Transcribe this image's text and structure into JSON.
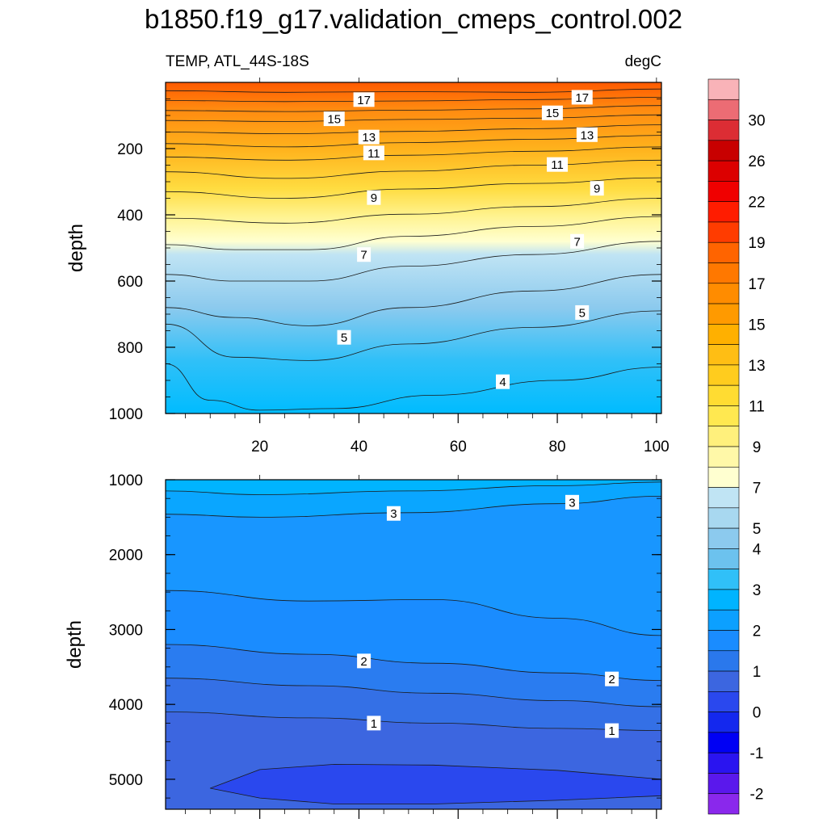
{
  "title": "b1850.f19_g17.validation_cmeps_control.002",
  "left_string": "TEMP, ATL_44S-18S",
  "right_string": "degC",
  "chart_data": [
    {
      "type": "contour",
      "panel": "upper",
      "variable": "TEMP",
      "region": "ATL_44S-18S",
      "units": "degC",
      "ylabel": "depth",
      "xlim": [
        1,
        101
      ],
      "ylim": [
        0,
        1000
      ],
      "y_reversed": true,
      "x_ticks": [
        20,
        40,
        60,
        80,
        100
      ],
      "y_ticks": [
        200,
        400,
        600,
        800,
        1000
      ],
      "contour_labels": [
        {
          "text": "17",
          "x": 41,
          "y": 52
        },
        {
          "text": "17",
          "x": 85,
          "y": 45
        },
        {
          "text": "15",
          "x": 35,
          "y": 110
        },
        {
          "text": "15",
          "x": 79,
          "y": 92
        },
        {
          "text": "13",
          "x": 42,
          "y": 165
        },
        {
          "text": "13",
          "x": 86,
          "y": 158
        },
        {
          "text": "11",
          "x": 43,
          "y": 213
        },
        {
          "text": "11",
          "x": 80,
          "y": 248
        },
        {
          "text": "9",
          "x": 43,
          "y": 348
        },
        {
          "text": "9",
          "x": 88,
          "y": 320
        },
        {
          "text": "7",
          "x": 41,
          "y": 520
        },
        {
          "text": "7",
          "x": 84,
          "y": 480
        },
        {
          "text": "5",
          "x": 37,
          "y": 770
        },
        {
          "text": "5",
          "x": 85,
          "y": 695
        },
        {
          "text": "4",
          "x": 69,
          "y": 904
        }
      ],
      "contours": [
        {
          "level": 17,
          "x": [
            1,
            25,
            50,
            75,
            101
          ],
          "y": [
            25,
            30,
            28,
            30,
            20
          ]
        },
        {
          "level": 16,
          "x": [
            1,
            25,
            50,
            75,
            101
          ],
          "y": [
            55,
            58,
            56,
            52,
            45
          ]
        },
        {
          "level": 15,
          "x": [
            1,
            25,
            50,
            75,
            101
          ],
          "y": [
            85,
            88,
            84,
            80,
            70
          ]
        },
        {
          "level": 14,
          "x": [
            1,
            25,
            50,
            75,
            101
          ],
          "y": [
            115,
            118,
            112,
            108,
            98
          ]
        },
        {
          "level": 13,
          "x": [
            1,
            25,
            50,
            75,
            101
          ],
          "y": [
            150,
            155,
            148,
            140,
            128
          ]
        },
        {
          "level": 12,
          "x": [
            1,
            25,
            50,
            75,
            101
          ],
          "y": [
            185,
            195,
            182,
            172,
            160
          ]
        },
        {
          "level": 11,
          "x": [
            1,
            25,
            50,
            75,
            101
          ],
          "y": [
            225,
            235,
            220,
            208,
            195
          ]
        },
        {
          "level": 10,
          "x": [
            1,
            25,
            50,
            75,
            101
          ],
          "y": [
            270,
            290,
            268,
            250,
            235
          ]
        },
        {
          "level": 9,
          "x": [
            1,
            25,
            50,
            75,
            101
          ],
          "y": [
            330,
            350,
            322,
            305,
            288
          ]
        },
        {
          "level": 8,
          "x": [
            1,
            25,
            50,
            75,
            101
          ],
          "y": [
            410,
            425,
            398,
            375,
            350
          ]
        },
        {
          "level": 7,
          "x": [
            1,
            15,
            30,
            50,
            75,
            101
          ],
          "y": [
            490,
            505,
            505,
            465,
            435,
            405
          ]
        },
        {
          "level": 6,
          "x": [
            1,
            15,
            30,
            50,
            75,
            101
          ],
          "y": [
            580,
            600,
            600,
            555,
            520,
            480
          ]
        },
        {
          "level": 5,
          "x": [
            1,
            15,
            30,
            50,
            75,
            101
          ],
          "y": [
            680,
            710,
            735,
            680,
            630,
            580
          ]
        },
        {
          "level": 4.5,
          "x": [
            1,
            15,
            30,
            50,
            75,
            101
          ],
          "y": [
            730,
            830,
            840,
            790,
            740,
            690
          ]
        },
        {
          "level": 4,
          "x": [
            1,
            10,
            20,
            35,
            55,
            80,
            101
          ],
          "y": [
            850,
            960,
            990,
            985,
            945,
            900,
            860
          ]
        }
      ]
    },
    {
      "type": "contour",
      "panel": "lower",
      "variable": "TEMP",
      "ylabel": "depth",
      "xlim": [
        1,
        101
      ],
      "ylim": [
        1000,
        5400
      ],
      "y_reversed": true,
      "y_ticks": [
        1000,
        2000,
        3000,
        4000,
        5000
      ],
      "contour_labels": [
        {
          "text": "3",
          "x": 47,
          "y": 1450
        },
        {
          "text": "3",
          "x": 83,
          "y": 1300
        },
        {
          "text": "2",
          "x": 41,
          "y": 3420
        },
        {
          "text": "2",
          "x": 91,
          "y": 3660
        },
        {
          "text": "1",
          "x": 43,
          "y": 4250
        },
        {
          "text": "1",
          "x": 91,
          "y": 4350
        }
      ],
      "contours": [
        {
          "level": 3.5,
          "x": [
            1,
            20,
            50,
            80,
            101
          ],
          "y": [
            1150,
            1200,
            1150,
            1080,
            1030
          ]
        },
        {
          "level": 3,
          "x": [
            1,
            20,
            50,
            80,
            101
          ],
          "y": [
            1460,
            1500,
            1440,
            1320,
            1220
          ]
        },
        {
          "level": 2.5,
          "x": [
            1,
            30,
            55,
            80,
            101
          ],
          "y": [
            2480,
            2620,
            2600,
            2850,
            3080
          ]
        },
        {
          "level": 2,
          "x": [
            1,
            30,
            55,
            80,
            101
          ],
          "y": [
            3200,
            3330,
            3450,
            3580,
            3680
          ]
        },
        {
          "level": 1.5,
          "x": [
            1,
            30,
            55,
            80,
            101
          ],
          "y": [
            3650,
            3750,
            3850,
            3950,
            4030
          ]
        },
        {
          "level": 1,
          "x": [
            1,
            30,
            55,
            80,
            101
          ],
          "y": [
            4100,
            4180,
            4250,
            4320,
            4350
          ]
        }
      ],
      "closed_region": {
        "level": 0.5,
        "x": [
          10,
          20,
          35,
          55,
          80,
          101,
          101,
          80,
          55,
          35,
          20,
          10
        ],
        "y": [
          5120,
          4870,
          4800,
          4810,
          4880,
          5000,
          5220,
          5280,
          5330,
          5330,
          5250,
          5120
        ]
      }
    }
  ],
  "colorbar": {
    "tick_labels": [
      "30",
      "26",
      "22",
      "19",
      "17",
      "15",
      "13",
      "11",
      "9",
      "7",
      "5",
      "4",
      "3",
      "2",
      "1",
      "0",
      "-1",
      "-2"
    ],
    "colors": [
      "#f9b3b8",
      "#ec6c74",
      "#dc2d34",
      "#c80000",
      "#dc0000",
      "#f00000",
      "#ff1c00",
      "#ff3c00",
      "#ff6400",
      "#ff7800",
      "#ff8c00",
      "#ff9a00",
      "#ffb000",
      "#ffbe14",
      "#ffcc1e",
      "#ffdc32",
      "#ffe850",
      "#fff07c",
      "#fff8a8",
      "#ffffd0",
      "#c0e4f4",
      "#a8d8f0",
      "#8ccaee",
      "#6cc2ee",
      "#30c0f8",
      "#00b4ff",
      "#0ca0ff",
      "#1a8cff",
      "#2a78ec",
      "#3c66e0",
      "#2a48ee",
      "#1428ee",
      "#0000f4",
      "#2a14f0",
      "#5a18ec",
      "#8a28ec"
    ],
    "tick_after_box": [
      2,
      4,
      6,
      8,
      10,
      12,
      14,
      16,
      18,
      20,
      22,
      23,
      25,
      27,
      29,
      31,
      33,
      35
    ]
  }
}
